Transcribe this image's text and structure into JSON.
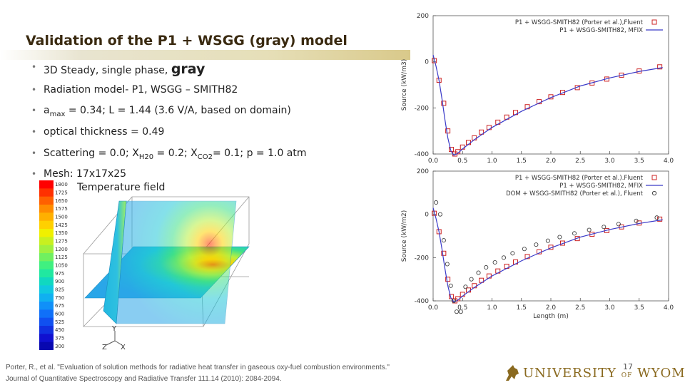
{
  "slide": {
    "title": "Validation of the P1 + WSGG (gray) model",
    "page_number": "17"
  },
  "bullets": [
    {
      "pre": "3D Steady, single phase, ",
      "big": "gray"
    },
    {
      "text": "Radiation model- P1,  WSGG – SMITH82"
    },
    {
      "pre": "a",
      "sub": "max",
      "post": " = 0.34; L = 1.44 (3.6 V/A, based on domain)"
    },
    {
      "text": "optical thickness = 0.49"
    },
    {
      "p1": "Scattering = 0.0;  X",
      "s1": "H20",
      "p2": " = 0.2;  X",
      "s2": "CO2",
      "p3": "= 0.1;  p = 1.0 atm"
    },
    {
      "text": "Mesh: 17x17x25"
    }
  ],
  "temperature_field": {
    "label": "Temperature field",
    "legend_ticks": [
      "1800",
      "1725",
      "1650",
      "1575",
      "1500",
      "1425",
      "1350",
      "1275",
      "1200",
      "1125",
      "1050",
      "975",
      "900",
      "825",
      "750",
      "675",
      "600",
      "525",
      "450",
      "375",
      "300"
    ],
    "axes": [
      "Y",
      "Z",
      "X"
    ]
  },
  "reference": {
    "line1": "Porter, R., et al. \"Evaluation of solution methods for radiative heat transfer in gaseous oxy-fuel combustion environments.\"",
    "line2": "Journal of Quantitative Spectroscopy and Radiative Transfer 111.14 (2010): 2084-2094."
  },
  "logo": {
    "text1": "UNIVERSITY",
    "of": "OF",
    "text2": "WYOMING"
  },
  "chart_data": [
    {
      "type": "line",
      "xlim": [
        0,
        4
      ],
      "ylim": [
        -400,
        200
      ],
      "xticks": [
        "0.0",
        "0.5",
        "1.0",
        "1.5",
        "2.0",
        "2.5",
        "3.0",
        "3.5",
        "4.0"
      ],
      "yticks": [
        "200",
        "0",
        "-200",
        "-400"
      ],
      "ylabel": "Source (kW/m3)",
      "xlabel": "",
      "legend": "top-right",
      "series": [
        {
          "name": "P1 + WSGG-SMITH82 (Porter et al.),Fluent",
          "marker": "square",
          "color": "#cc2222",
          "x": [
            0.02,
            0.1,
            0.18,
            0.25,
            0.31,
            0.37,
            0.42,
            0.5,
            0.6,
            0.7,
            0.82,
            0.95,
            1.1,
            1.25,
            1.4,
            1.6,
            1.8,
            2.0,
            2.2,
            2.45,
            2.7,
            2.95,
            3.2,
            3.5,
            3.85
          ],
          "y": [
            5,
            -80,
            -180,
            -300,
            -380,
            -400,
            -390,
            -370,
            -350,
            -330,
            -305,
            -285,
            -262,
            -240,
            -220,
            -195,
            -173,
            -152,
            -133,
            -112,
            -92,
            -75,
            -58,
            -40,
            -22
          ]
        },
        {
          "name": "P1 + WSGG-SMITH82, MFIX",
          "marker": "none",
          "color": "#3a3ac8",
          "x": [
            0.0,
            0.05,
            0.1,
            0.15,
            0.2,
            0.25,
            0.3,
            0.35,
            0.4,
            0.45,
            0.5,
            0.7,
            1.0,
            1.5,
            2.0,
            2.5,
            3.0,
            3.5,
            3.9
          ],
          "y": [
            30,
            -20,
            -80,
            -160,
            -250,
            -330,
            -385,
            -405,
            -400,
            -390,
            -378,
            -338,
            -285,
            -215,
            -155,
            -105,
            -70,
            -42,
            -25
          ]
        }
      ]
    },
    {
      "type": "line",
      "xlim": [
        0,
        4
      ],
      "ylim": [
        -400,
        200
      ],
      "xticks": [
        "0.0",
        "0.5",
        "1.0",
        "1.5",
        "2.0",
        "2.5",
        "3.0",
        "3.5",
        "4.0"
      ],
      "yticks": [
        "200",
        "0",
        "-200",
        "-400"
      ],
      "ylabel": "Source (kW/m2)",
      "xlabel": "Length (m)",
      "legend": "top-right",
      "series": [
        {
          "name": "P1 + WSGG-SMITH82 (Porter et al.).Fluent",
          "marker": "square",
          "color": "#cc2222",
          "x": [
            0.02,
            0.1,
            0.18,
            0.25,
            0.31,
            0.37,
            0.42,
            0.5,
            0.6,
            0.7,
            0.82,
            0.95,
            1.1,
            1.25,
            1.4,
            1.6,
            1.8,
            2.0,
            2.2,
            2.45,
            2.7,
            2.95,
            3.2,
            3.5,
            3.85
          ],
          "y": [
            5,
            -80,
            -180,
            -300,
            -380,
            -400,
            -390,
            -370,
            -350,
            -330,
            -305,
            -285,
            -262,
            -240,
            -220,
            -195,
            -173,
            -152,
            -133,
            -112,
            -92,
            -75,
            -58,
            -40,
            -22
          ]
        },
        {
          "name": "P1 + WSGG-SMITH82, MFIX",
          "marker": "none",
          "color": "#3a3ac8",
          "x": [
            0.0,
            0.05,
            0.1,
            0.15,
            0.2,
            0.25,
            0.3,
            0.35,
            0.4,
            0.45,
            0.5,
            0.7,
            1.0,
            1.5,
            2.0,
            2.5,
            3.0,
            3.5,
            3.9
          ],
          "y": [
            30,
            -20,
            -80,
            -160,
            -250,
            -330,
            -385,
            -405,
            -400,
            -390,
            -378,
            -338,
            -285,
            -215,
            -155,
            -105,
            -70,
            -42,
            -25
          ]
        },
        {
          "name": "DOM + WSGG-SMITH82 (Porter et al.), Fluent",
          "marker": "circle",
          "color": "#444444",
          "x": [
            0.05,
            0.12,
            0.18,
            0.24,
            0.3,
            0.35,
            0.4,
            0.47,
            0.55,
            0.65,
            0.77,
            0.9,
            1.05,
            1.2,
            1.35,
            1.55,
            1.75,
            1.95,
            2.15,
            2.4,
            2.65,
            2.9,
            3.15,
            3.45,
            3.8
          ],
          "y": [
            55,
            0,
            -120,
            -230,
            -330,
            -400,
            -450,
            -450,
            -335,
            -300,
            -270,
            -245,
            -222,
            -200,
            -180,
            -160,
            -140,
            -122,
            -105,
            -88,
            -72,
            -58,
            -45,
            -30,
            -15
          ]
        }
      ]
    }
  ]
}
